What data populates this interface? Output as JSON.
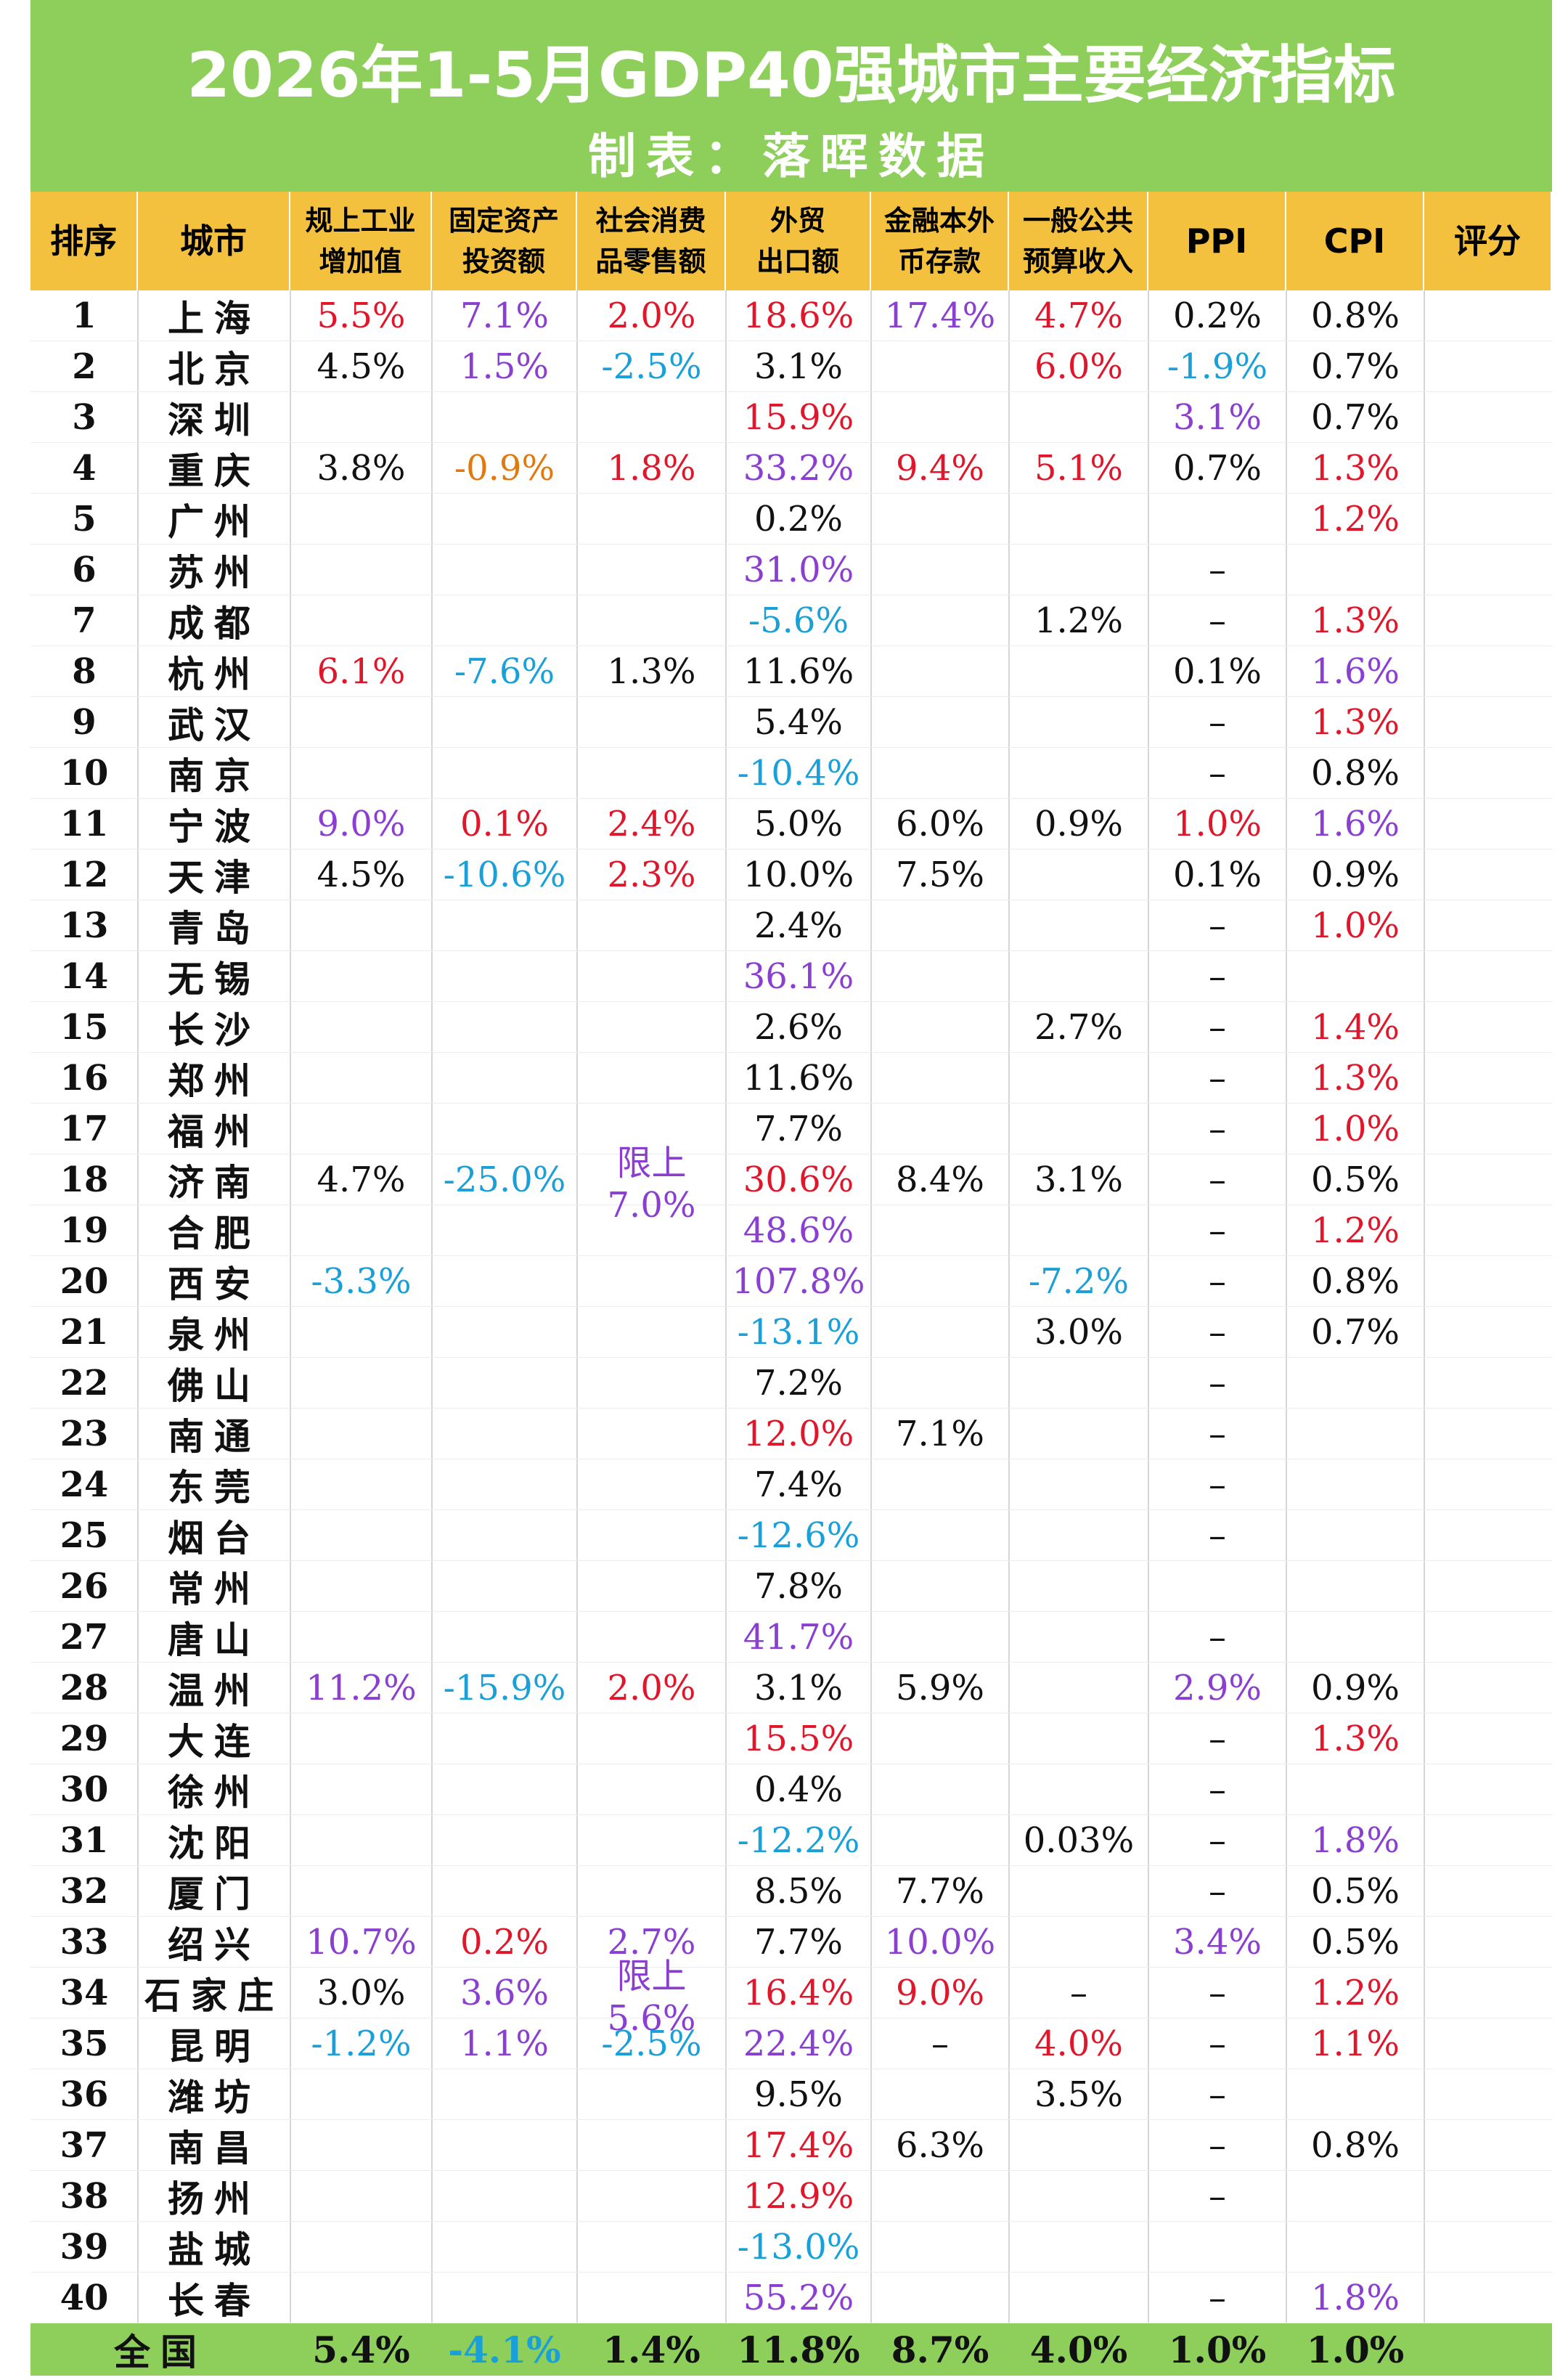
{
  "header": {
    "title": "2026年1-5月GDP40强城市主要经济指标",
    "subtitle": "制表：落晖数据"
  },
  "table": {
    "columns": [
      [
        "排序"
      ],
      [
        "城市"
      ],
      [
        "规上工业",
        "增加值"
      ],
      [
        "固定资产",
        "投资额"
      ],
      [
        "社会消费",
        "品零售额"
      ],
      [
        "外贸",
        "出口额"
      ],
      [
        "金融本外",
        "币存款"
      ],
      [
        "一般公共",
        "预算收入"
      ],
      [
        "PPI"
      ],
      [
        "CPI"
      ],
      [
        "评分"
      ]
    ],
    "rows": [
      [
        "1",
        "上海",
        {
          "text": "5.5%",
          "color": "#e0162b"
        },
        {
          "text": "7.1%",
          "color": "#8a3fd1"
        },
        {
          "text": "2.0%",
          "color": "#e0162b"
        },
        {
          "text": "18.6%",
          "color": "#e0162b"
        },
        {
          "text": "17.4%",
          "color": "#8a3fd1"
        },
        {
          "text": "4.7%",
          "color": "#e0162b"
        },
        "0.2%",
        "0.8%",
        null
      ],
      [
        "2",
        "北京",
        "4.5%",
        {
          "text": "1.5%",
          "color": "#8a3fd1"
        },
        {
          "text": "-2.5%",
          "color": "#1aa0d8"
        },
        "3.1%",
        null,
        {
          "text": "6.0%",
          "color": "#e0162b"
        },
        {
          "text": "-1.9%",
          "color": "#1aa0d8"
        },
        "0.7%",
        null
      ],
      [
        "3",
        "深圳",
        null,
        null,
        null,
        {
          "text": "15.9%",
          "color": "#e0162b"
        },
        null,
        null,
        {
          "text": "3.1%",
          "color": "#8a3fd1"
        },
        "0.7%",
        null
      ],
      [
        "4",
        "重庆",
        "3.8%",
        {
          "text": "-0.9%",
          "color": "#e07a10"
        },
        {
          "text": "1.8%",
          "color": "#e0162b"
        },
        {
          "text": "33.2%",
          "color": "#8a3fd1"
        },
        {
          "text": "9.4%",
          "color": "#e0162b"
        },
        {
          "text": "5.1%",
          "color": "#e0162b"
        },
        "0.7%",
        {
          "text": "1.3%",
          "color": "#e0162b"
        },
        null
      ],
      [
        "5",
        "广州",
        null,
        null,
        null,
        "0.2%",
        null,
        null,
        null,
        {
          "text": "1.2%",
          "color": "#e0162b"
        },
        null
      ],
      [
        "6",
        "苏州",
        null,
        null,
        null,
        {
          "text": "31.0%",
          "color": "#8a3fd1"
        },
        null,
        null,
        "–",
        null,
        null
      ],
      [
        "7",
        "成都",
        null,
        null,
        null,
        {
          "text": "-5.6%",
          "color": "#1aa0d8"
        },
        null,
        "1.2%",
        "–",
        {
          "text": "1.3%",
          "color": "#e0162b"
        },
        null
      ],
      [
        "8",
        "杭州",
        {
          "text": "6.1%",
          "color": "#e0162b"
        },
        {
          "text": "-7.6%",
          "color": "#1aa0d8"
        },
        "1.3%",
        "11.6%",
        null,
        null,
        "0.1%",
        {
          "text": "1.6%",
          "color": "#8a3fd1"
        },
        null
      ],
      [
        "9",
        "武汉",
        null,
        null,
        null,
        "5.4%",
        null,
        null,
        "–",
        {
          "text": "1.3%",
          "color": "#e0162b"
        },
        null
      ],
      [
        "10",
        "南京",
        null,
        null,
        null,
        {
          "text": "-10.4%",
          "color": "#1aa0d8"
        },
        null,
        null,
        "–",
        "0.8%",
        null
      ],
      [
        "11",
        "宁波",
        {
          "text": "9.0%",
          "color": "#8a3fd1"
        },
        {
          "text": "0.1%",
          "color": "#e0162b"
        },
        {
          "text": "2.4%",
          "color": "#e0162b"
        },
        "5.0%",
        "6.0%",
        "0.9%",
        {
          "text": "1.0%",
          "color": "#e0162b"
        },
        {
          "text": "1.6%",
          "color": "#8a3fd1"
        },
        null
      ],
      [
        "12",
        "天津",
        "4.5%",
        {
          "text": "-10.6%",
          "color": "#1aa0d8"
        },
        {
          "text": "2.3%",
          "color": "#e0162b"
        },
        "10.0%",
        "7.5%",
        null,
        "0.1%",
        "0.9%",
        null
      ],
      [
        "13",
        "青岛",
        null,
        null,
        null,
        "2.4%",
        null,
        null,
        "–",
        {
          "text": "1.0%",
          "color": "#e0162b"
        },
        null
      ],
      [
        "14",
        "无锡",
        null,
        null,
        null,
        {
          "text": "36.1%",
          "color": "#8a3fd1"
        },
        null,
        null,
        "–",
        null,
        null
      ],
      [
        "15",
        "长沙",
        null,
        null,
        null,
        "2.6%",
        null,
        "2.7%",
        "–",
        {
          "text": "1.4%",
          "color": "#e0162b"
        },
        null
      ],
      [
        "16",
        "郑州",
        null,
        null,
        null,
        "11.6%",
        null,
        null,
        "–",
        {
          "text": "1.3%",
          "color": "#e0162b"
        },
        null
      ],
      [
        "17",
        "福州",
        null,
        null,
        null,
        "7.7%",
        null,
        null,
        "–",
        {
          "text": "1.0%",
          "color": "#e0162b"
        },
        null
      ],
      [
        "18",
        "济南",
        "4.7%",
        {
          "text": "-25.0%",
          "color": "#1aa0d8"
        },
        {
          "text": "限上7.0%",
          "color": "#8a3fd1"
        },
        {
          "text": "30.6%",
          "color": "#e0162b"
        },
        "8.4%",
        "3.1%",
        "–",
        "0.5%",
        null
      ],
      [
        "19",
        "合肥",
        null,
        null,
        null,
        {
          "text": "48.6%",
          "color": "#8a3fd1"
        },
        null,
        null,
        "–",
        {
          "text": "1.2%",
          "color": "#e0162b"
        },
        null
      ],
      [
        "20",
        "西安",
        {
          "text": "-3.3%",
          "color": "#1aa0d8"
        },
        null,
        null,
        {
          "text": "107.8%",
          "color": "#8a3fd1"
        },
        null,
        {
          "text": "-7.2%",
          "color": "#1aa0d8"
        },
        "–",
        "0.8%",
        null
      ],
      [
        "21",
        "泉州",
        null,
        null,
        null,
        {
          "text": "-13.1%",
          "color": "#1aa0d8"
        },
        null,
        "3.0%",
        "–",
        "0.7%",
        null
      ],
      [
        "22",
        "佛山",
        null,
        null,
        null,
        "7.2%",
        null,
        null,
        "–",
        null,
        null
      ],
      [
        "23",
        "南通",
        null,
        null,
        null,
        {
          "text": "12.0%",
          "color": "#e0162b"
        },
        "7.1%",
        null,
        "–",
        null,
        null
      ],
      [
        "24",
        "东莞",
        null,
        null,
        null,
        "7.4%",
        null,
        null,
        "–",
        null,
        null
      ],
      [
        "25",
        "烟台",
        null,
        null,
        null,
        {
          "text": "-12.6%",
          "color": "#1aa0d8"
        },
        null,
        null,
        "–",
        null,
        null
      ],
      [
        "26",
        "常州",
        null,
        null,
        null,
        "7.8%",
        null,
        null,
        null,
        null,
        null
      ],
      [
        "27",
        "唐山",
        null,
        null,
        null,
        {
          "text": "41.7%",
          "color": "#8a3fd1"
        },
        null,
        null,
        "–",
        null,
        null
      ],
      [
        "28",
        "温州",
        {
          "text": "11.2%",
          "color": "#8a3fd1"
        },
        {
          "text": "-15.9%",
          "color": "#1aa0d8"
        },
        {
          "text": "2.0%",
          "color": "#e0162b"
        },
        "3.1%",
        "5.9%",
        null,
        {
          "text": "2.9%",
          "color": "#8a3fd1"
        },
        "0.9%",
        null
      ],
      [
        "29",
        "大连",
        null,
        null,
        null,
        {
          "text": "15.5%",
          "color": "#e0162b"
        },
        null,
        null,
        "–",
        {
          "text": "1.3%",
          "color": "#e0162b"
        },
        null
      ],
      [
        "30",
        "徐州",
        null,
        null,
        null,
        "0.4%",
        null,
        null,
        "–",
        null,
        null
      ],
      [
        "31",
        "沈阳",
        null,
        null,
        null,
        {
          "text": "-12.2%",
          "color": "#1aa0d8"
        },
        null,
        "0.03%",
        "–",
        {
          "text": "1.8%",
          "color": "#8a3fd1"
        },
        null
      ],
      [
        "32",
        "厦门",
        null,
        null,
        null,
        "8.5%",
        "7.7%",
        null,
        "–",
        "0.5%",
        null
      ],
      [
        "33",
        "绍兴",
        {
          "text": "10.7%",
          "color": "#8a3fd1"
        },
        {
          "text": "0.2%",
          "color": "#e0162b"
        },
        {
          "text": "2.7%",
          "color": "#8a3fd1"
        },
        "7.7%",
        {
          "text": "10.0%",
          "color": "#8a3fd1"
        },
        null,
        {
          "text": "3.4%",
          "color": "#8a3fd1"
        },
        "0.5%",
        null
      ],
      [
        "34",
        "石家庄",
        "3.0%",
        {
          "text": "3.6%",
          "color": "#8a3fd1"
        },
        {
          "text": "限上5.6%",
          "color": "#8a3fd1"
        },
        {
          "text": "16.4%",
          "color": "#e0162b"
        },
        {
          "text": "9.0%",
          "color": "#e0162b"
        },
        "–",
        "–",
        {
          "text": "1.2%",
          "color": "#e0162b"
        },
        null
      ],
      [
        "35",
        "昆明",
        {
          "text": "-1.2%",
          "color": "#1aa0d8"
        },
        {
          "text": "1.1%",
          "color": "#8a3fd1"
        },
        {
          "text": "-2.5%",
          "color": "#1aa0d8"
        },
        {
          "text": "22.4%",
          "color": "#8a3fd1"
        },
        "–",
        {
          "text": "4.0%",
          "color": "#e0162b"
        },
        "–",
        {
          "text": "1.1%",
          "color": "#e0162b"
        },
        null
      ],
      [
        "36",
        "潍坊",
        null,
        null,
        null,
        "9.5%",
        null,
        "3.5%",
        "–",
        null,
        null
      ],
      [
        "37",
        "南昌",
        null,
        null,
        null,
        {
          "text": "17.4%",
          "color": "#e0162b"
        },
        "6.3%",
        null,
        "–",
        "0.8%",
        null
      ],
      [
        "38",
        "扬州",
        null,
        null,
        null,
        {
          "text": "12.9%",
          "color": "#e0162b"
        },
        null,
        null,
        "–",
        null,
        null
      ],
      [
        "39",
        "盐城",
        null,
        null,
        null,
        {
          "text": "-13.0%",
          "color": "#1aa0d8"
        },
        null,
        null,
        null,
        null,
        null
      ],
      [
        "40",
        "长春",
        null,
        null,
        null,
        {
          "text": "55.2%",
          "color": "#8a3fd1"
        },
        null,
        null,
        "–",
        {
          "text": "1.8%",
          "color": "#8a3fd1"
        },
        null
      ]
    ],
    "total": {
      "label": "全国",
      "cells": [
        "5.4%",
        {
          "text": "-4.1%",
          "color": "#1aa0d8"
        },
        "1.4%",
        "11.8%",
        "8.7%",
        "4.0%",
        "1.0%",
        "1.0%",
        null
      ]
    }
  }
}
